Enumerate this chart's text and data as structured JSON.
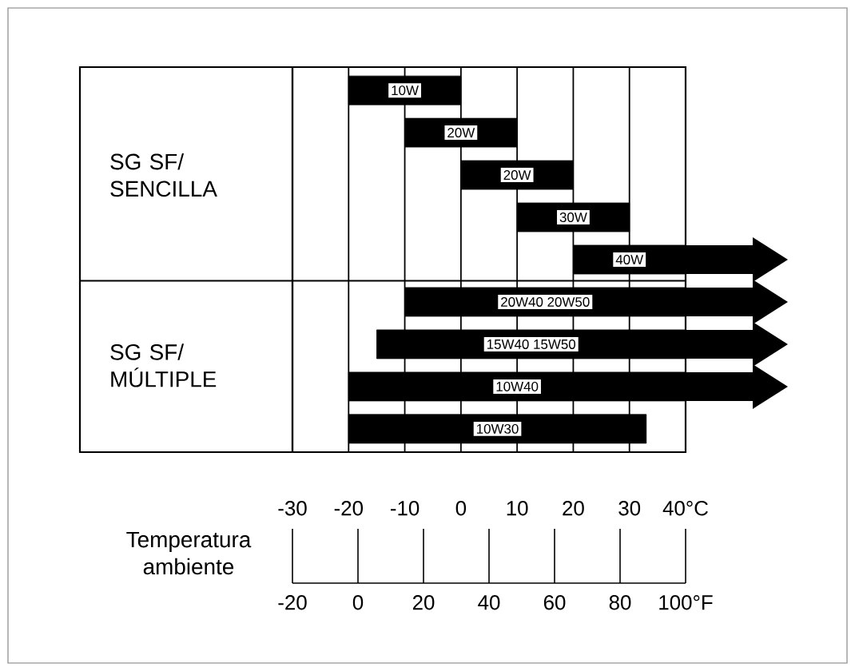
{
  "chart_data": {
    "type": "bar",
    "orientation": "horizontal",
    "categories": [
      "10W",
      "20W",
      "20W",
      "30W",
      "40W",
      "20W40    20W50",
      "15W40    15W50",
      "10W40",
      "10W30"
    ],
    "base": [
      -20,
      -10,
      0,
      10,
      20,
      -10,
      -15,
      -20,
      -20
    ],
    "values": [
      20,
      20,
      20,
      20,
      20,
      50,
      55,
      60,
      53
    ],
    "color": "#000000",
    "xlim": [
      -30,
      40
    ],
    "xticks": [
      -30,
      -20,
      -10,
      0,
      10,
      20,
      30,
      {
        "value": 40,
        "label": "40°C"
      }
    ],
    "x2lim": [
      -20,
      100
    ],
    "x2ticks": [
      -20,
      0,
      20,
      40,
      60,
      80,
      {
        "value": 100,
        "label": "100°F"
      }
    ],
    "xlabel": "Temperatura ambiente",
    "grid": "x",
    "annotations": [
      "SG SF/ SENCILLA",
      "SG SF/ MÚLTIPLE"
    ]
  }
}
